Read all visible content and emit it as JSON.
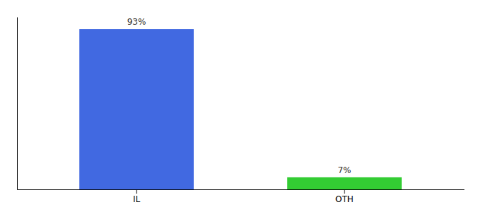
{
  "chart_data": {
    "type": "bar",
    "categories": [
      "IL",
      "OTH"
    ],
    "values": [
      93,
      7
    ],
    "value_labels": [
      "93%",
      "7%"
    ],
    "colors": [
      "#4169e1",
      "#33cc33"
    ],
    "ylim": [
      0,
      100
    ],
    "data_labels": true,
    "tick_labels": "x",
    "grid": false
  }
}
